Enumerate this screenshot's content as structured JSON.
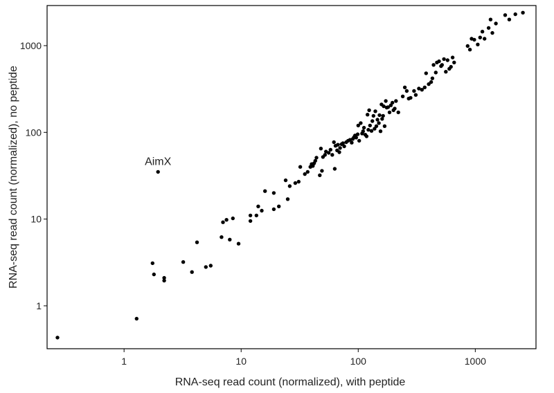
{
  "chart_data": {
    "type": "scatter",
    "title": "",
    "xlabel": "RNA-seq read count (normalized), with peptide",
    "ylabel": "RNA-seq read count (normalized), no peptide",
    "x_scale": "log",
    "y_scale": "log",
    "xlim": [
      0.22,
      3300
    ],
    "ylim": [
      0.32,
      2900
    ],
    "x_ticks": [
      {
        "value": 1,
        "label": "1"
      },
      {
        "value": 10,
        "label": "10"
      },
      {
        "value": 100,
        "label": "100"
      },
      {
        "value": 1000,
        "label": "1000"
      }
    ],
    "y_ticks": [
      {
        "value": 1,
        "label": "1"
      },
      {
        "value": 10,
        "label": "10"
      },
      {
        "value": 100,
        "label": "100"
      },
      {
        "value": 1000,
        "label": "1000"
      }
    ],
    "grid": false,
    "annotations": [
      {
        "text": "AimX",
        "x": 1.95,
        "y": 35
      }
    ],
    "series": [
      {
        "points": [
          [
            0.27,
            0.43
          ],
          [
            1.28,
            0.71
          ],
          [
            1.75,
            3.1
          ],
          [
            1.8,
            2.3
          ],
          [
            2.2,
            2.1
          ],
          [
            2.2,
            1.95
          ],
          [
            1.95,
            35
          ],
          [
            3.2,
            3.2
          ],
          [
            3.8,
            2.45
          ],
          [
            4.2,
            5.4
          ],
          [
            5.0,
            2.8
          ],
          [
            5.5,
            2.9
          ],
          [
            6.8,
            6.2
          ],
          [
            7.0,
            9.2
          ],
          [
            7.5,
            9.8
          ],
          [
            8.0,
            5.8
          ],
          [
            8.5,
            10.2
          ],
          [
            9.5,
            5.2
          ],
          [
            12,
            9.5
          ],
          [
            12,
            11
          ],
          [
            13.5,
            11
          ],
          [
            14,
            14
          ],
          [
            15,
            12.5
          ],
          [
            16,
            21
          ],
          [
            19,
            13
          ],
          [
            19,
            20
          ],
          [
            21,
            14
          ],
          [
            24,
            28
          ],
          [
            25,
            17
          ],
          [
            26,
            24
          ],
          [
            29,
            26
          ],
          [
            31,
            27
          ],
          [
            32,
            40
          ],
          [
            35,
            33
          ],
          [
            37,
            35
          ],
          [
            39,
            40
          ],
          [
            40,
            43
          ],
          [
            41,
            41
          ],
          [
            42,
            44
          ],
          [
            43,
            47
          ],
          [
            44,
            51
          ],
          [
            47,
            32
          ],
          [
            48,
            65
          ],
          [
            49,
            36
          ],
          [
            50,
            52
          ],
          [
            52,
            55
          ],
          [
            53,
            60
          ],
          [
            56,
            58
          ],
          [
            58,
            63
          ],
          [
            60,
            55
          ],
          [
            62,
            77
          ],
          [
            63,
            38
          ],
          [
            64,
            70
          ],
          [
            66,
            62
          ],
          [
            67,
            72
          ],
          [
            69,
            59
          ],
          [
            70,
            66
          ],
          [
            72,
            73
          ],
          [
            74,
            75
          ],
          [
            76,
            69
          ],
          [
            79,
            77
          ],
          [
            82,
            80
          ],
          [
            85,
            82
          ],
          [
            88,
            76
          ],
          [
            90,
            84
          ],
          [
            92,
            88
          ],
          [
            94,
            92
          ],
          [
            96,
            87
          ],
          [
            99,
            95
          ],
          [
            100,
            120
          ],
          [
            102,
            80
          ],
          [
            105,
            128
          ],
          [
            108,
            97
          ],
          [
            110,
            103
          ],
          [
            112,
            113
          ],
          [
            115,
            94
          ],
          [
            118,
            90
          ],
          [
            120,
            160
          ],
          [
            122,
            107
          ],
          [
            124,
            180
          ],
          [
            126,
            120
          ],
          [
            130,
            104
          ],
          [
            132,
            135
          ],
          [
            135,
            155
          ],
          [
            138,
            110
          ],
          [
            140,
            175
          ],
          [
            143,
            118
          ],
          [
            146,
            140
          ],
          [
            150,
            128
          ],
          [
            152,
            158
          ],
          [
            155,
            103
          ],
          [
            158,
            210
          ],
          [
            160,
            143
          ],
          [
            163,
            155
          ],
          [
            165,
            200
          ],
          [
            168,
            118
          ],
          [
            172,
            230
          ],
          [
            175,
            193
          ],
          [
            180,
            195
          ],
          [
            185,
            170
          ],
          [
            190,
            205
          ],
          [
            196,
            220
          ],
          [
            200,
            180
          ],
          [
            205,
            188
          ],
          [
            210,
            230
          ],
          [
            220,
            170
          ],
          [
            240,
            260
          ],
          [
            250,
            330
          ],
          [
            260,
            300
          ],
          [
            270,
            245
          ],
          [
            280,
            250
          ],
          [
            300,
            300
          ],
          [
            310,
            270
          ],
          [
            330,
            320
          ],
          [
            350,
            310
          ],
          [
            370,
            330
          ],
          [
            380,
            480
          ],
          [
            400,
            360
          ],
          [
            420,
            380
          ],
          [
            430,
            420
          ],
          [
            440,
            600
          ],
          [
            460,
            490
          ],
          [
            470,
            640
          ],
          [
            490,
            660
          ],
          [
            510,
            580
          ],
          [
            520,
            600
          ],
          [
            540,
            700
          ],
          [
            560,
            500
          ],
          [
            580,
            680
          ],
          [
            600,
            540
          ],
          [
            620,
            570
          ],
          [
            640,
            730
          ],
          [
            660,
            640
          ],
          [
            860,
            990
          ],
          [
            900,
            900
          ],
          [
            930,
            1200
          ],
          [
            980,
            1170
          ],
          [
            1050,
            1030
          ],
          [
            1100,
            1240
          ],
          [
            1150,
            1450
          ],
          [
            1200,
            1200
          ],
          [
            1300,
            1600
          ],
          [
            1350,
            2000
          ],
          [
            1400,
            1400
          ],
          [
            1500,
            1800
          ],
          [
            1800,
            2250
          ],
          [
            1950,
            2000
          ],
          [
            2200,
            2300
          ],
          [
            2550,
            2400
          ]
        ]
      }
    ]
  }
}
